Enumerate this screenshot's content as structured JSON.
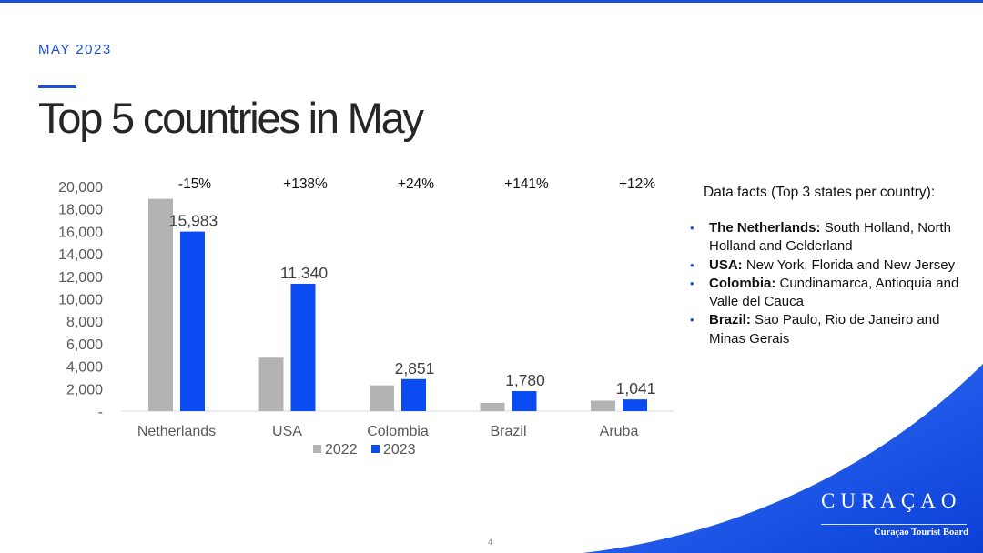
{
  "header": {
    "kicker": "MAY 2023",
    "title": "Top 5 countries in May"
  },
  "chart_data": {
    "type": "bar",
    "categories": [
      "Netherlands",
      "USA",
      "Colombia",
      "Brazil",
      "Aruba"
    ],
    "series": [
      {
        "name": "2022",
        "values": [
          18900,
          4760,
          2300,
          740,
          930
        ],
        "color": "#b3b3b3"
      },
      {
        "name": "2023",
        "values": [
          15983,
          11340,
          2851,
          1780,
          1041
        ],
        "color": "#0b4bf2"
      }
    ],
    "data_labels_2023": [
      "15,983",
      "11,340",
      "2,851",
      "1,780",
      "1,041"
    ],
    "growth_labels": [
      "-15%",
      "+138%",
      "+24%",
      "+141%",
      "+12%"
    ],
    "ylim": [
      0,
      20000
    ],
    "y_ticks": [
      0,
      2000,
      4000,
      6000,
      8000,
      10000,
      12000,
      14000,
      16000,
      18000,
      20000
    ],
    "y_tick_labels": [
      "-",
      "2,000",
      "4,000",
      "6,000",
      "8,000",
      "10,000",
      "12,000",
      "14,000",
      "16,000",
      "18,000",
      "20,000"
    ],
    "legend_position": "bottom",
    "grid": false,
    "title": "",
    "xlabel": "",
    "ylabel": ""
  },
  "facts": {
    "heading": "Data facts (Top 3 states per country):",
    "items": [
      {
        "country": "The Netherlands:",
        "text": " South Holland, North Holland and Gelderland"
      },
      {
        "country": "USA:",
        "text": " New York, Florida and New Jersey"
      },
      {
        "country": "Colombia:",
        "text": " Cundinamarca, Antioquia and Valle del Cauca"
      },
      {
        "country": "Brazil:",
        "text": " Sao Paulo, Rio de Janeiro and Minas Gerais"
      }
    ]
  },
  "footer": {
    "logo_word": "CURAÇAO",
    "logo_tagline": "Curaçao Tourist Board",
    "page_number": "4"
  },
  "colors": {
    "accent": "#1a4fe0",
    "bar_2022": "#b3b3b3",
    "bar_2023": "#0b4bf2"
  }
}
